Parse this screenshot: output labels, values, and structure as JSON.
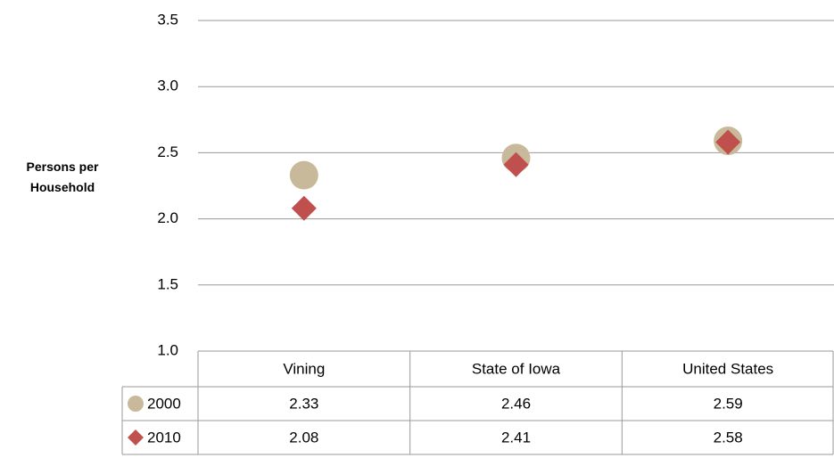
{
  "chart_data": {
    "type": "scatter",
    "y_label": "Persons per Household",
    "categories": [
      "Vining",
      "State of Iowa",
      "United States"
    ],
    "series": [
      {
        "name": "2000",
        "color": "#c9b99b",
        "marker": "circle",
        "values": [
          2.33,
          2.46,
          2.59
        ]
      },
      {
        "name": "2010",
        "color": "#c0504d",
        "marker": "diamond",
        "values": [
          2.08,
          2.41,
          2.58
        ]
      }
    ],
    "ylim": [
      1.0,
      3.5
    ],
    "yticks": [
      {
        "value": 1.0,
        "label": "1.0"
      },
      {
        "value": 1.5,
        "label": "1.5"
      },
      {
        "value": 2.0,
        "label": "2.0"
      },
      {
        "value": 2.5,
        "label": "2.5"
      },
      {
        "value": 3.0,
        "label": "3.0"
      },
      {
        "value": 3.5,
        "label": "3.5"
      }
    ],
    "grid": true,
    "data_table": true
  }
}
